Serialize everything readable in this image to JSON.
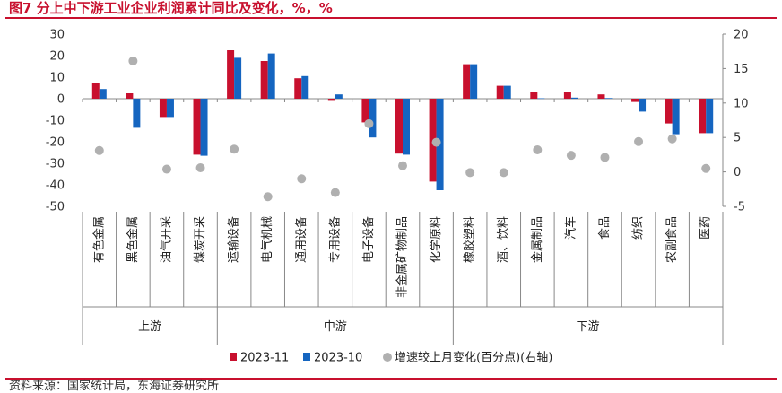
{
  "figure_title": "图7 分上中下游工业企业利润累计同比及变化，%，%",
  "source_note": "资料来源：国家统计局，东海证券研究所",
  "colors": {
    "series_nov": "#c8102e",
    "series_oct": "#1565c0",
    "series_change": "#b0b0b0",
    "accent": "#c8102e"
  },
  "chart_data": {
    "type": "bar",
    "categories": [
      "有色金属",
      "黑色金属",
      "油气开采",
      "煤炭开采",
      "运输设备",
      "电气机械",
      "通用设备",
      "专用设备",
      "电子设备",
      "非金属矿物制品",
      "化学原料",
      "橡胶塑料",
      "酒、饮料",
      "金属制品",
      "汽车",
      "食品",
      "纺织",
      "农副食品",
      "医药"
    ],
    "groups": [
      {
        "label": "上游",
        "start": 0,
        "end": 3
      },
      {
        "label": "中游",
        "start": 4,
        "end": 10
      },
      {
        "label": "下游",
        "start": 11,
        "end": 18
      }
    ],
    "series": [
      {
        "name": "2023-11",
        "kind": "bar",
        "axis": "left",
        "values": [
          7.5,
          2.5,
          -8.5,
          -26,
          22.5,
          17.5,
          9.5,
          -1,
          -11,
          -25.5,
          -38.5,
          16,
          6,
          3,
          3,
          2,
          -1.5,
          -11.5,
          -16
        ]
      },
      {
        "name": "2023-10",
        "kind": "bar",
        "axis": "left",
        "values": [
          4.5,
          -13.5,
          -8.5,
          -26.5,
          19,
          21,
          10.5,
          2,
          -18,
          -26,
          -42.5,
          16,
          6,
          0.2,
          0.5,
          0.3,
          -6,
          -16.5,
          -16
        ]
      },
      {
        "name": "增速较上月变化(百分点)(右轴)",
        "kind": "scatter",
        "axis": "right",
        "values": [
          3.1,
          16.1,
          0.4,
          0.6,
          3.3,
          -3.6,
          -1,
          -3,
          7,
          0.9,
          4.3,
          -0.1,
          -0.1,
          3.2,
          2.4,
          2.1,
          4.4,
          4.8,
          0.5
        ]
      }
    ],
    "y_left": {
      "min": -50,
      "max": 30,
      "ticks": [
        30,
        20,
        10,
        0,
        -10,
        -20,
        -30,
        -40,
        -50
      ]
    },
    "y_right": {
      "min": -5,
      "max": 20,
      "ticks": [
        20,
        15,
        10,
        5,
        0,
        -5
      ]
    },
    "legend_position": "bottom",
    "grid": false
  }
}
